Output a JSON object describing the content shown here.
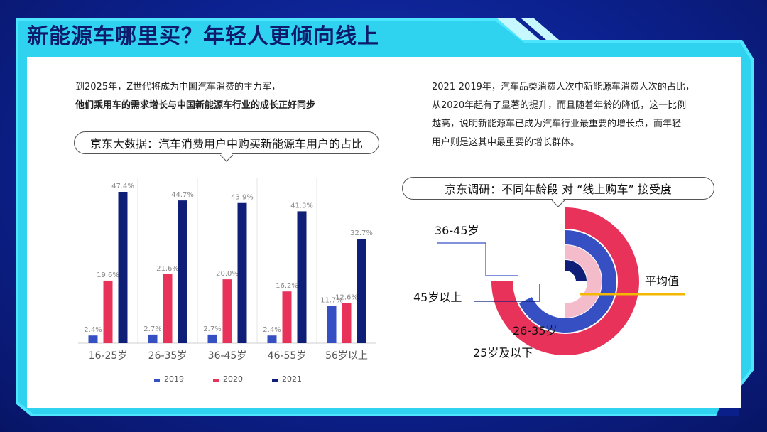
{
  "title": "新能源车哪里买？年轻人更倾向线上",
  "left_text": {
    "line1": "到2025年，Z世代将成为中国汽车消费的主力军，",
    "line2": "他们乘用车的需求增长与中国新能源车行业的成长正好同步"
  },
  "right_text": {
    "line1": "2021-2019年，汽车品类消费人次中新能源车消费人次的占比，",
    "line2": "从2020年起有了显著的提升，而且随着年龄的降低，这一比例",
    "line3": "越高，说明新能源车已成为汽车行业最重要的增长点，而年轻",
    "line4": "用户则是这其中最重要的增长群体。"
  },
  "callouts": {
    "bar": "京东大数据：汽车消费用户中购买新能源车用户的占比",
    "radial": "京东调研：不同年龄段 对 “线上购车” 接受度"
  },
  "colors": {
    "2019": "#3650c4",
    "2020": "#e8325a",
    "2021": "#0f1f78",
    "avg": "#f5b800",
    "pink": "#f4bcca"
  },
  "chart_data": [
    {
      "type": "bar",
      "categories": [
        "16-25岁",
        "26-35岁",
        "36-45岁",
        "46-55岁",
        "56岁以上"
      ],
      "series": [
        {
          "name": "2019",
          "values": [
            2.4,
            2.7,
            2.7,
            2.4,
            11.7
          ]
        },
        {
          "name": "2020",
          "values": [
            19.6,
            21.6,
            20.0,
            16.2,
            12.6
          ]
        },
        {
          "name": "2021",
          "values": [
            47.4,
            44.7,
            43.9,
            41.3,
            32.7
          ]
        }
      ],
      "data_labels": [
        [
          "2.4%",
          "2.7%",
          "2.7%",
          "2.4%",
          "11.7%"
        ],
        [
          "19.6%",
          "21.6%",
          "20.0%",
          "16.2%",
          "12.6%"
        ],
        [
          "47.4%",
          "44.7%",
          "43.9%",
          "41.3%",
          "32.7%"
        ]
      ],
      "legend": [
        "2019",
        "2020",
        "2021"
      ],
      "legend_position": "bottom",
      "ylim": [
        0,
        50
      ],
      "unit": "%"
    },
    {
      "type": "radial-bar",
      "categories": [
        "25岁及以下",
        "26-35岁",
        "36-45岁",
        "45岁以上"
      ],
      "sweep_fraction": [
        0.75,
        0.68,
        0.5,
        0.25
      ],
      "reference_label": "平均值",
      "reference_fraction": 0.495
    }
  ]
}
